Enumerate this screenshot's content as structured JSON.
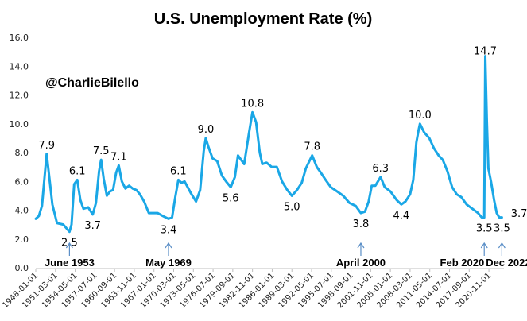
{
  "chart_data": {
    "type": "line",
    "title": "U.S. Unemployment Rate (%)",
    "watermark": "@CharlieBilello",
    "ylim": [
      0,
      16
    ],
    "yticks": [
      "0.0",
      "2.0",
      "4.0",
      "6.0",
      "8.0",
      "10.0",
      "12.0",
      "14.0",
      "16.0"
    ],
    "xticks": [
      "1948-01-01",
      "1951-03-01",
      "1954-05-01",
      "1957-07-01",
      "1960-09-01",
      "1963-11-01",
      "1967-01-01",
      "1970-03-01",
      "1973-05-01",
      "1976-07-01",
      "1979-09-01",
      "1982-11-01",
      "1986-01-01",
      "1989-03-01",
      "1992-05-01",
      "1995-07-01",
      "1998-09-01",
      "2001-11-01",
      "2005-01-01",
      "2008-03-01",
      "2011-05-01",
      "2014-07-01",
      "2017-09-01",
      "2020-11-01"
    ],
    "grid": false,
    "legend": "none",
    "line_color": "#1aa7e6",
    "series": [
      {
        "x": [
          "1948-01-01",
          "1948-07-01",
          "1949-01-01",
          "1949-05-01",
          "1949-10-01",
          "1950-03-01",
          "1950-09-01",
          "1951-06-01",
          "1952-06-01",
          "1953-06-01",
          "1953-10-01",
          "1954-03-01",
          "1954-09-01",
          "1955-03-01",
          "1955-09-01",
          "1956-06-01",
          "1957-03-01",
          "1957-09-01",
          "1958-03-01",
          "1958-07-01",
          "1958-12-01",
          "1959-06-01",
          "1959-12-01",
          "1960-06-01",
          "1960-12-01",
          "1961-05-01",
          "1961-11-01",
          "1962-06-01",
          "1963-01-01",
          "1963-08-01",
          "1964-03-01",
          "1964-10-01",
          "1965-06-01",
          "1966-03-01",
          "1966-12-01",
          "1967-08-01",
          "1968-06-01",
          "1969-05-01",
          "1969-12-01",
          "1970-06-01",
          "1970-12-01",
          "1971-06-01",
          "1971-12-01",
          "1972-06-01",
          "1972-12-01",
          "1973-10-01",
          "1974-06-01",
          "1975-01-01",
          "1975-05-01",
          "1975-10-01",
          "1976-06-01",
          "1977-03-01",
          "1977-12-01",
          "1978-08-01",
          "1979-05-01",
          "1980-01-01",
          "1980-07-01",
          "1981-01-01",
          "1981-07-01",
          "1982-04-01",
          "1982-11-01",
          "1983-06-01",
          "1984-01-01",
          "1984-06-01",
          "1985-02-01",
          "1985-12-01",
          "1986-10-01",
          "1987-08-01",
          "1988-06-01",
          "1989-03-01",
          "1990-01-01",
          "1990-10-01",
          "1991-06-01",
          "1992-06-01",
          "1993-03-01",
          "1993-11-01",
          "1994-08-01",
          "1995-06-01",
          "1996-06-01",
          "1997-06-01",
          "1998-06-01",
          "1999-06-01",
          "2000-04-01",
          "2000-12-01",
          "2001-07-01",
          "2002-01-01",
          "2002-08-01",
          "2003-06-01",
          "2004-02-01",
          "2005-01-01",
          "2006-01-01",
          "2006-10-01",
          "2007-06-01",
          "2008-03-01",
          "2008-09-01",
          "2009-03-01",
          "2009-07-01",
          "2009-10-01",
          "2010-06-01",
          "2011-04-01",
          "2012-01-01",
          "2012-10-01",
          "2013-06-01",
          "2014-03-01",
          "2014-12-01",
          "2015-09-01",
          "2016-06-01",
          "2017-04-01",
          "2018-03-01",
          "2019-02-01",
          "2019-09-01",
          "2020-02-01",
          "2020-04-01",
          "2020-07-01",
          "2020-10-01",
          "2021-03-01",
          "2021-09-01",
          "2022-02-01",
          "2022-07-01",
          "2022-12-01"
        ],
        "values": [
          3.4,
          3.6,
          4.3,
          5.9,
          7.9,
          6.3,
          4.4,
          3.1,
          3.0,
          2.5,
          3.0,
          5.8,
          6.1,
          4.7,
          4.1,
          4.2,
          3.7,
          4.5,
          6.7,
          7.5,
          6.2,
          5.0,
          5.3,
          5.4,
          6.6,
          7.1,
          6.0,
          5.5,
          5.7,
          5.5,
          5.4,
          5.1,
          4.6,
          3.8,
          3.8,
          3.8,
          3.6,
          3.4,
          3.5,
          4.9,
          6.1,
          5.9,
          6.0,
          5.6,
          5.2,
          4.6,
          5.4,
          8.1,
          9.0,
          8.4,
          7.6,
          7.4,
          6.4,
          6.0,
          5.6,
          6.3,
          7.8,
          7.5,
          7.2,
          9.3,
          10.8,
          10.1,
          8.0,
          7.2,
          7.3,
          7.0,
          7.0,
          6.0,
          5.4,
          5.0,
          5.4,
          5.9,
          6.9,
          7.8,
          7.0,
          6.6,
          6.1,
          5.6,
          5.3,
          5.0,
          4.5,
          4.3,
          3.8,
          3.9,
          4.6,
          5.7,
          5.7,
          6.3,
          5.6,
          5.3,
          4.7,
          4.4,
          4.6,
          5.1,
          6.1,
          8.7,
          9.5,
          10.0,
          9.4,
          9.0,
          8.3,
          7.8,
          7.5,
          6.7,
          5.6,
          5.1,
          4.9,
          4.4,
          4.1,
          3.8,
          3.5,
          3.5,
          14.7,
          10.2,
          6.9,
          6.0,
          4.7,
          3.8,
          3.5,
          3.5
        ]
      }
    ],
    "data_labels": [
      {
        "date": "1949-10-01",
        "text": "7.9"
      },
      {
        "date": "1953-06-01",
        "text": "2.5"
      },
      {
        "date": "1954-09-01",
        "text": "6.1"
      },
      {
        "date": "1957-03-01",
        "text": "3.7"
      },
      {
        "date": "1958-07-01",
        "text": "7.5"
      },
      {
        "date": "1961-05-01",
        "text": "7.1"
      },
      {
        "date": "1969-05-01",
        "text": "3.4"
      },
      {
        "date": "1970-12-01",
        "text": "6.1"
      },
      {
        "date": "1975-05-01",
        "text": "9.0"
      },
      {
        "date": "1979-05-01",
        "text": "5.6"
      },
      {
        "date": "1982-11-01",
        "text": "10.8"
      },
      {
        "date": "1989-03-01",
        "text": "5.0"
      },
      {
        "date": "1992-06-01",
        "text": "7.8"
      },
      {
        "date": "2000-04-01",
        "text": "3.8"
      },
      {
        "date": "2003-06-01",
        "text": "6.3"
      },
      {
        "date": "2006-10-01",
        "text": "4.4"
      },
      {
        "date": "2009-10-01",
        "text": "10.0"
      },
      {
        "date": "2020-02-01",
        "text": "3.5"
      },
      {
        "date": "2020-04-01",
        "text": "14.7"
      },
      {
        "date": "2022-12-01",
        "text": "3.5"
      },
      {
        "date": "2022-11-01",
        "text": "3.7"
      }
    ],
    "annotations": [
      {
        "date": "1953-06-01",
        "text": "June 1953"
      },
      {
        "date": "1969-05-01",
        "text": "May 1969"
      },
      {
        "date": "2000-04-01",
        "text": "April 2000"
      },
      {
        "date": "2020-02-01",
        "text": "Feb 2020"
      },
      {
        "date": "2022-12-01",
        "text": "Dec 2022"
      }
    ]
  }
}
